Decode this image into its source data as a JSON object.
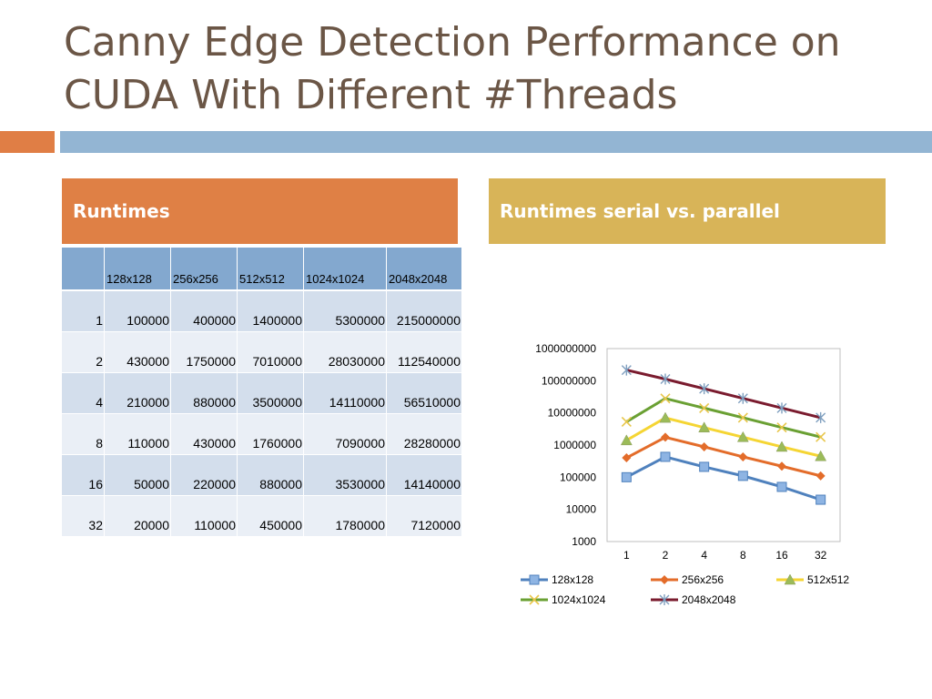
{
  "slide": {
    "title": "Canny Edge Detection Performance on CUDA With Different #Threads"
  },
  "panels": {
    "left_header": "Runtimes",
    "right_header": "Runtimes serial vs. parallel"
  },
  "table": {
    "corner": "",
    "columns": [
      "128x128",
      "256x256",
      "512x512",
      "1024x1024",
      "2048x2048"
    ],
    "rows": [
      {
        "threads": "1",
        "values": [
          "100000",
          "400000",
          "1400000",
          "5300000",
          "215000000"
        ]
      },
      {
        "threads": "2",
        "values": [
          "430000",
          "1750000",
          "7010000",
          "28030000",
          "112540000"
        ]
      },
      {
        "threads": "4",
        "values": [
          "210000",
          "880000",
          "3500000",
          "14110000",
          "56510000"
        ]
      },
      {
        "threads": "8",
        "values": [
          "110000",
          "430000",
          "1760000",
          "7090000",
          "28280000"
        ]
      },
      {
        "threads": "16",
        "values": [
          "50000",
          "220000",
          "880000",
          "3530000",
          "14140000"
        ]
      },
      {
        "threads": "32",
        "values": [
          "20000",
          "110000",
          "450000",
          "1780000",
          "7120000"
        ]
      }
    ]
  },
  "chart_data": {
    "type": "line",
    "title": "",
    "xlabel": "",
    "ylabel": "",
    "scale": "log",
    "ylim": [
      1000,
      1000000000
    ],
    "y_ticks": [
      "1000",
      "10000",
      "100000",
      "1000000",
      "10000000",
      "100000000",
      "1000000000"
    ],
    "categories": [
      "1",
      "2",
      "4",
      "8",
      "16",
      "32"
    ],
    "grid": false,
    "legend_position": "bottom",
    "series": [
      {
        "name": "128x128",
        "color": "#4f81bd",
        "marker": "square",
        "values": [
          100000,
          430000,
          210000,
          110000,
          50000,
          20000
        ]
      },
      {
        "name": "256x256",
        "color": "#e36c2a",
        "marker": "diamond",
        "values": [
          400000,
          1750000,
          880000,
          430000,
          220000,
          110000
        ]
      },
      {
        "name": "512x512",
        "color": "#f5d533",
        "marker": "triangle",
        "values": [
          1400000,
          7010000,
          3500000,
          1760000,
          880000,
          450000
        ]
      },
      {
        "name": "1024x1024",
        "color": "#6aa033",
        "marker": "x",
        "values": [
          5300000,
          28030000,
          14110000,
          7090000,
          3530000,
          1780000
        ]
      },
      {
        "name": "2048x2048",
        "color": "#7a1b2e",
        "marker": "star",
        "values": [
          215000000,
          112540000,
          56510000,
          28280000,
          14140000,
          7120000
        ]
      }
    ]
  }
}
